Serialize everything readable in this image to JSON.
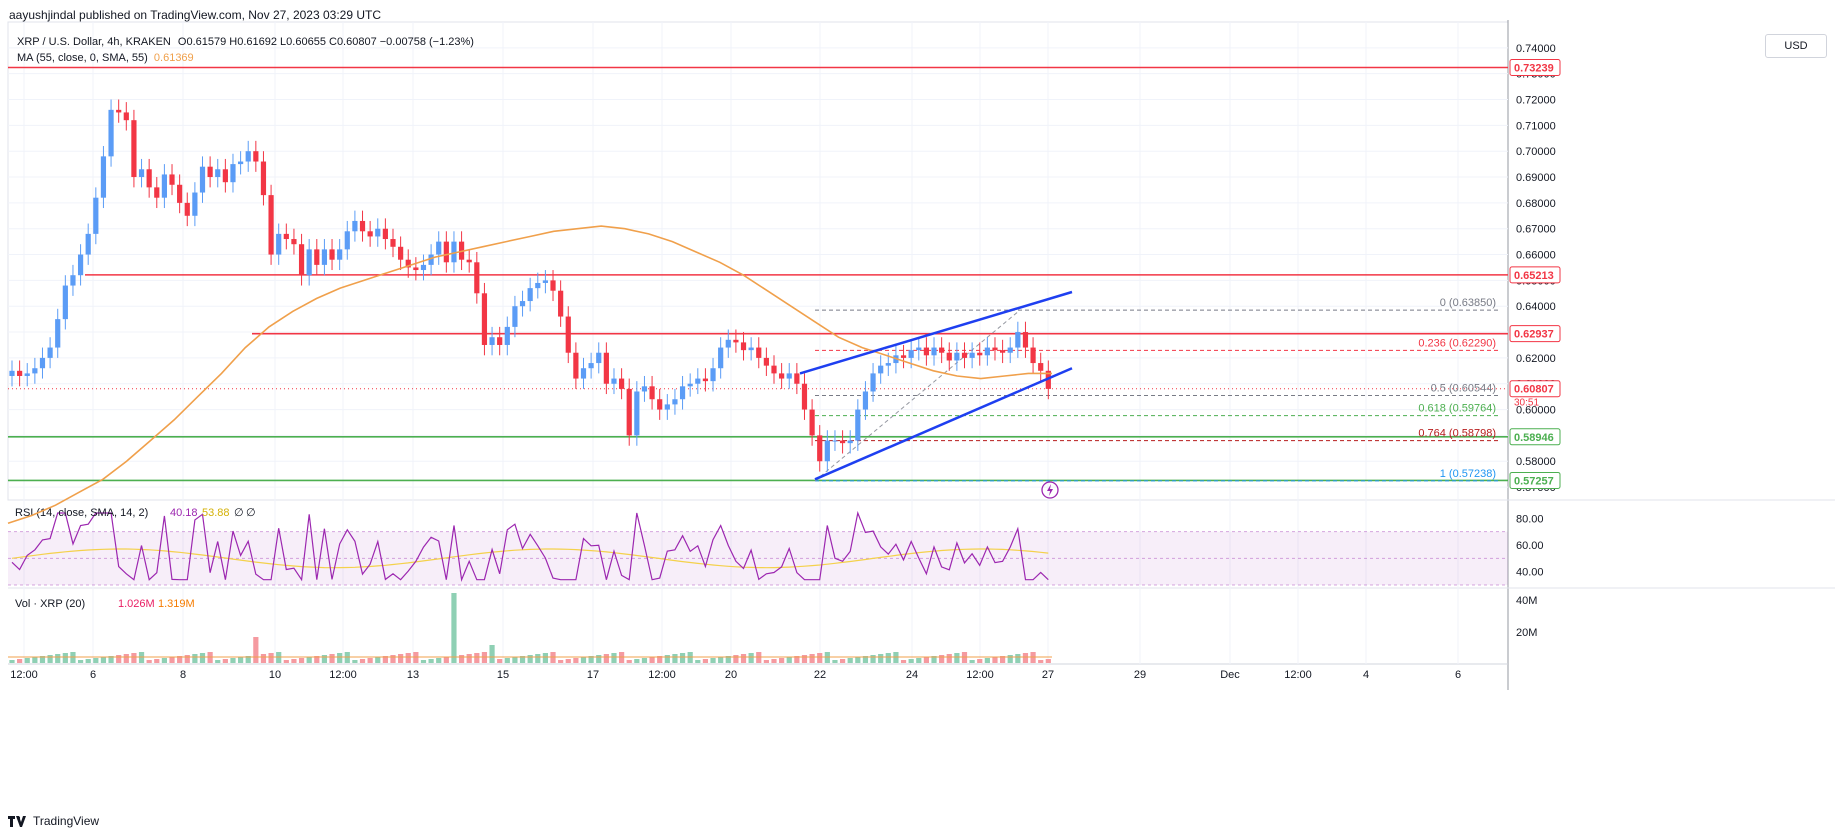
{
  "publisher": "aayushjindal published on TradingView.com, Nov 27, 2023 03:29 UTC",
  "header": {
    "symbol": "XRP / U.S. Dollar, 4h, KRAKEN",
    "ohlc": "O0.61579 H0.61692 L0.60655 C0.60807 −0.00758 (−1.23%)",
    "ma_label": "MA (55, close, 0, SMA, 55)",
    "ma_value": "0.61369"
  },
  "currency_button": "USD",
  "brand": "TradingView",
  "colors": {
    "up": "#5b9cf6",
    "down": "#f23645",
    "ma": "#f0a04b",
    "resistance": "#f23645",
    "support": "#4caf50",
    "channel": "#1e3ff0",
    "rsi": "#9c27b0",
    "rsi_ma": "#f4d14b"
  },
  "chart_data": [
    {
      "type": "candlestick",
      "interval": "4h",
      "ylim": [
        0.565,
        0.75
      ],
      "y_ticks": [
        "0.74000",
        "0.73000",
        "0.72000",
        "0.71000",
        "0.70000",
        "0.69000",
        "0.68000",
        "0.67000",
        "0.66000",
        "0.65000",
        "0.64000",
        "0.63000",
        "0.62000",
        "0.61000",
        "0.60000",
        "0.59000",
        "0.58000",
        "0.57000"
      ],
      "x_ticks": [
        "12:00",
        "6",
        "8",
        "10",
        "12:00",
        "13",
        "15",
        "17",
        "12:00",
        "20",
        "22",
        "24",
        "12:00",
        "27",
        "29",
        "Dec",
        "12:00",
        "4",
        "6"
      ],
      "close_series": [
        0.615,
        0.613,
        0.614,
        0.616,
        0.62,
        0.624,
        0.635,
        0.648,
        0.652,
        0.66,
        0.668,
        0.682,
        0.698,
        0.716,
        0.715,
        0.712,
        0.69,
        0.693,
        0.686,
        0.682,
        0.691,
        0.687,
        0.68,
        0.675,
        0.684,
        0.694,
        0.69,
        0.693,
        0.688,
        0.695,
        0.696,
        0.7,
        0.696,
        0.683,
        0.66,
        0.668,
        0.666,
        0.664,
        0.652,
        0.662,
        0.656,
        0.662,
        0.658,
        0.662,
        0.669,
        0.673,
        0.669,
        0.667,
        0.67,
        0.666,
        0.663,
        0.658,
        0.655,
        0.654,
        0.656,
        0.66,
        0.665,
        0.657,
        0.665,
        0.658,
        0.657,
        0.645,
        0.625,
        0.628,
        0.625,
        0.632,
        0.64,
        0.642,
        0.647,
        0.649,
        0.65,
        0.646,
        0.636,
        0.622,
        0.612,
        0.616,
        0.618,
        0.622,
        0.61,
        0.612,
        0.608,
        0.59,
        0.607,
        0.609,
        0.604,
        0.6,
        0.602,
        0.604,
        0.609,
        0.61,
        0.612,
        0.611,
        0.616,
        0.624,
        0.627,
        0.626,
        0.623,
        0.624,
        0.62,
        0.617,
        0.614,
        0.612,
        0.614,
        0.61,
        0.6,
        0.59,
        0.58,
        0.588,
        0.588,
        0.587,
        0.588,
        0.6,
        0.607,
        0.614,
        0.617,
        0.618,
        0.621,
        0.62,
        0.623,
        0.624,
        0.621,
        0.624,
        0.622,
        0.619,
        0.622,
        0.62,
        0.622,
        0.621,
        0.624,
        0.623,
        0.622,
        0.624,
        0.63,
        0.624,
        0.618,
        0.615,
        0.608
      ],
      "resistance_levels": [
        0.73239,
        0.65213,
        0.62937
      ],
      "support_levels": [
        0.58946,
        0.57257
      ],
      "current_price": 0.60807,
      "countdown": "30:51",
      "price_labels": [
        "0.73239",
        "0.65213",
        "0.62937",
        "0.60807",
        "0.58946",
        "0.57257"
      ],
      "fibonacci": [
        {
          "label": "0 (0.63850)",
          "price": 0.6385
        },
        {
          "label": "0.236 (0.62290)",
          "price": 0.6229
        },
        {
          "label": "0.5 (0.60544)",
          "price": 0.60544
        },
        {
          "label": "0.618 (0.59764)",
          "price": 0.59764
        },
        {
          "label": "0.764 (0.58798)",
          "price": 0.58798
        },
        {
          "label": "1 (0.57238)",
          "price": 0.57238
        }
      ],
      "ma_values": [
        0.556,
        0.559,
        0.563,
        0.568,
        0.573,
        0.58,
        0.588,
        0.596,
        0.605,
        0.614,
        0.624,
        0.632,
        0.638,
        0.643,
        0.647,
        0.65,
        0.653,
        0.656,
        0.659,
        0.661,
        0.663,
        0.665,
        0.667,
        0.669,
        0.67,
        0.671,
        0.67,
        0.668,
        0.665,
        0.661,
        0.657,
        0.652,
        0.646,
        0.64,
        0.634,
        0.628,
        0.624,
        0.621,
        0.618,
        0.615,
        0.613,
        0.612,
        0.613,
        0.614,
        0.614
      ]
    },
    {
      "type": "line",
      "name": "RSI (14, close, SMA, 14, 2)",
      "values_text": [
        "40.18",
        "53.88",
        "∅",
        "∅"
      ],
      "ylim": [
        30,
        90
      ],
      "y_ticks": [
        "80.00",
        "60.00",
        "40.00"
      ],
      "band": [
        30,
        70
      ]
    },
    {
      "type": "bar",
      "name": "Vol · XRP (20)",
      "values_text": [
        "1.026M",
        "1.319M"
      ],
      "y_ticks": [
        "40M",
        "20M"
      ]
    }
  ]
}
